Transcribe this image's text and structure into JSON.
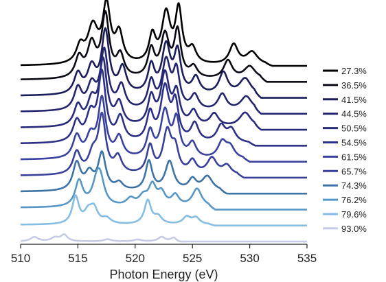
{
  "chart_data": {
    "type": "line",
    "title": "",
    "xlabel": "Photon Energy (eV)",
    "ylabel": "",
    "xlim": [
      510,
      535
    ],
    "x_ticks": [
      510,
      515,
      520,
      525,
      530,
      535
    ],
    "stacked_offsets": true,
    "grid": false,
    "legend_placement": "right",
    "series": [
      {
        "name": "27.3%",
        "color": "#000000",
        "baseline": 0,
        "tail": 532.0,
        "peaks": [
          [
            515.2,
            0.45,
            0.4
          ],
          [
            516.3,
            1.0,
            0.55
          ],
          [
            517.5,
            1.55,
            0.4
          ],
          [
            518.6,
            0.8,
            0.4
          ],
          [
            521.5,
            0.75,
            0.35
          ],
          [
            522.7,
            1.35,
            0.45
          ],
          [
            523.8,
            1.45,
            0.35
          ],
          [
            525.0,
            0.4,
            0.4
          ],
          [
            528.6,
            0.55,
            0.45
          ],
          [
            530.2,
            0.35,
            0.6
          ]
        ]
      },
      {
        "name": "36.5%",
        "color": "#0a0a14",
        "baseline": 0.05,
        "tail": 531.5,
        "peaks": [
          [
            515.1,
            0.55,
            0.4
          ],
          [
            516.2,
            0.9,
            0.45
          ],
          [
            517.4,
            1.7,
            0.4
          ],
          [
            518.7,
            0.6,
            0.4
          ],
          [
            521.4,
            0.75,
            0.35
          ],
          [
            522.6,
            1.15,
            0.45
          ],
          [
            523.7,
            1.25,
            0.35
          ],
          [
            525.1,
            0.3,
            0.4
          ],
          [
            528.1,
            0.5,
            0.45
          ],
          [
            530.0,
            0.35,
            0.6
          ]
        ]
      },
      {
        "name": "41.5%",
        "color": "#1b1c5a",
        "baseline": 0.05,
        "tail": 531.0,
        "peaks": [
          [
            515.0,
            0.55,
            0.4
          ],
          [
            516.2,
            0.7,
            0.45
          ],
          [
            517.4,
            1.7,
            0.4
          ],
          [
            518.9,
            0.7,
            0.4
          ],
          [
            521.4,
            0.75,
            0.35
          ],
          [
            522.7,
            1.3,
            0.45
          ],
          [
            523.7,
            1.1,
            0.35
          ],
          [
            525.3,
            0.45,
            0.4
          ],
          [
            527.7,
            0.6,
            0.45
          ],
          [
            529.6,
            0.45,
            0.6
          ]
        ]
      },
      {
        "name": "44.5%",
        "color": "#22246e",
        "baseline": 0.05,
        "tail": 531.0,
        "peaks": [
          [
            515.0,
            0.6,
            0.4
          ],
          [
            516.2,
            0.65,
            0.45
          ],
          [
            517.3,
            1.6,
            0.4
          ],
          [
            518.8,
            0.65,
            0.4
          ],
          [
            521.4,
            0.75,
            0.35
          ],
          [
            522.7,
            1.3,
            0.45
          ],
          [
            523.6,
            1.0,
            0.35
          ],
          [
            525.2,
            0.4,
            0.4
          ],
          [
            527.6,
            0.45,
            0.45
          ],
          [
            529.7,
            0.4,
            0.6
          ]
        ]
      },
      {
        "name": "50.5%",
        "color": "#27297a",
        "baseline": 0.05,
        "tail": 531.0,
        "peaks": [
          [
            515.0,
            0.55,
            0.4
          ],
          [
            516.2,
            0.65,
            0.45
          ],
          [
            517.2,
            1.75,
            0.4
          ],
          [
            518.6,
            0.6,
            0.4
          ],
          [
            521.4,
            0.75,
            0.35
          ],
          [
            522.6,
            1.4,
            0.45
          ],
          [
            523.6,
            0.85,
            0.35
          ],
          [
            525.1,
            0.4,
            0.4
          ],
          [
            526.9,
            0.35,
            0.45
          ],
          [
            529.6,
            0.4,
            0.6
          ]
        ]
      },
      {
        "name": "54.5%",
        "color": "#2c3086",
        "baseline": 0.05,
        "tail": 530.5,
        "peaks": [
          [
            514.9,
            0.55,
            0.4
          ],
          [
            516.1,
            0.7,
            0.45
          ],
          [
            517.1,
            1.85,
            0.4
          ],
          [
            518.7,
            0.65,
            0.4
          ],
          [
            521.3,
            0.75,
            0.35
          ],
          [
            522.6,
            1.45,
            0.45
          ],
          [
            523.5,
            1.0,
            0.35
          ],
          [
            525.2,
            0.5,
            0.4
          ],
          [
            527.5,
            0.45,
            0.45
          ],
          [
            528.4,
            0.35,
            0.45
          ]
        ]
      },
      {
        "name": "61.5%",
        "color": "#3a42a0",
        "baseline": 0.05,
        "tail": 530.0,
        "peaks": [
          [
            514.9,
            0.6,
            0.4
          ],
          [
            516.1,
            0.55,
            0.45
          ],
          [
            517.1,
            1.6,
            0.4
          ],
          [
            518.6,
            0.55,
            0.4
          ],
          [
            521.3,
            0.7,
            0.35
          ],
          [
            522.6,
            1.25,
            0.45
          ],
          [
            523.6,
            1.0,
            0.35
          ],
          [
            525.0,
            0.4,
            0.4
          ],
          [
            527.6,
            0.45,
            0.45
          ],
          [
            528.3,
            0.3,
            0.45
          ]
        ]
      },
      {
        "name": "65.7%",
        "color": "#384099",
        "baseline": 0.05,
        "tail": 529.5,
        "peaks": [
          [
            514.9,
            0.6,
            0.4
          ],
          [
            516.3,
            0.5,
            0.45
          ],
          [
            517.1,
            1.55,
            0.4
          ],
          [
            518.5,
            0.45,
            0.4
          ],
          [
            521.3,
            0.75,
            0.35
          ],
          [
            522.8,
            1.15,
            0.45
          ],
          [
            523.5,
            0.6,
            0.35
          ],
          [
            525.0,
            0.35,
            0.4
          ],
          [
            526.7,
            0.45,
            0.5
          ],
          [
            528.0,
            0.25,
            0.45
          ]
        ]
      },
      {
        "name": "74.3%",
        "color": "#3e73a6",
        "baseline": 0.05,
        "tail": 528.0,
        "peaks": [
          [
            514.9,
            0.75,
            0.4
          ],
          [
            516.0,
            0.45,
            0.45
          ],
          [
            517.1,
            1.0,
            0.4
          ],
          [
            518.6,
            0.2,
            0.4
          ],
          [
            521.2,
            0.8,
            0.35
          ],
          [
            523.0,
            0.8,
            0.45
          ],
          [
            525.0,
            0.3,
            0.4
          ],
          [
            526.3,
            0.4,
            0.55
          ]
        ]
      },
      {
        "name": "76.2%",
        "color": "#5697c6",
        "baseline": 0.05,
        "tail": 527.0,
        "peaks": [
          [
            515.1,
            0.7,
            0.4
          ],
          [
            516.7,
            0.75,
            0.5
          ],
          [
            517.0,
            0.4,
            0.4
          ],
          [
            519.6,
            0.2,
            0.45
          ],
          [
            520.7,
            0.25,
            0.45
          ],
          [
            521.5,
            0.55,
            0.4
          ],
          [
            522.3,
            0.35,
            0.4
          ],
          [
            523.5,
            0.3,
            0.4
          ],
          [
            525.4,
            0.5,
            0.5
          ]
        ]
      },
      {
        "name": "79.6%",
        "color": "#86bde2",
        "baseline": 0.02,
        "tail": 527.0,
        "peaks": [
          [
            514.8,
            0.75,
            0.35
          ],
          [
            515.9,
            0.3,
            0.4
          ],
          [
            516.4,
            0.4,
            0.4
          ],
          [
            517.5,
            0.15,
            0.45
          ],
          [
            521.1,
            0.65,
            0.35
          ],
          [
            522.0,
            0.2,
            0.4
          ],
          [
            524.5,
            0.2,
            0.4
          ],
          [
            525.3,
            0.18,
            0.4
          ]
        ]
      },
      {
        "name": "93.0%",
        "color": "#c7cbe6",
        "baseline": 0.0,
        "tail": 524.0,
        "peaks": [
          [
            511.2,
            0.12,
            0.4
          ],
          [
            513.0,
            0.1,
            0.4
          ],
          [
            513.8,
            0.18,
            0.35
          ],
          [
            517.6,
            0.06,
            0.4
          ],
          [
            520.2,
            0.05,
            0.4
          ],
          [
            522.3,
            0.12,
            0.35
          ],
          [
            523.4,
            0.1,
            0.35
          ]
        ]
      }
    ]
  }
}
